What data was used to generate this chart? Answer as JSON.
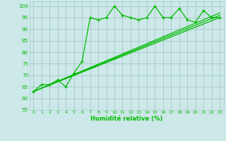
{
  "xlabel": "Humidité relative (%)",
  "bg_color": "#cce8e8",
  "grid_color": "#aacccc",
  "line_color": "#00bb00",
  "xlim": [
    -0.5,
    23.5
  ],
  "ylim": [
    55,
    102
  ],
  "yticks": [
    55,
    60,
    65,
    70,
    75,
    80,
    85,
    90,
    95,
    100
  ],
  "xticks": [
    0,
    1,
    2,
    3,
    4,
    5,
    6,
    7,
    8,
    9,
    10,
    11,
    12,
    13,
    14,
    15,
    16,
    17,
    18,
    19,
    20,
    21,
    22,
    23
  ],
  "series1_x": [
    0,
    1,
    2,
    3,
    4,
    5,
    6,
    7,
    8,
    9,
    10,
    11,
    12,
    13,
    14,
    15,
    16,
    17,
    18,
    19,
    20,
    21,
    22,
    23
  ],
  "series1_y": [
    63,
    66,
    66,
    68,
    65,
    71,
    76,
    95,
    94,
    95,
    100,
    96,
    95,
    94,
    95,
    100,
    95,
    95,
    99,
    94,
    93,
    98,
    95,
    95
  ],
  "series2_x": [
    0,
    23
  ],
  "series2_y": [
    63,
    95
  ],
  "series3_x": [
    0,
    23
  ],
  "series3_y": [
    63,
    96
  ],
  "series4_x": [
    0,
    23
  ],
  "series4_y": [
    63,
    97
  ]
}
